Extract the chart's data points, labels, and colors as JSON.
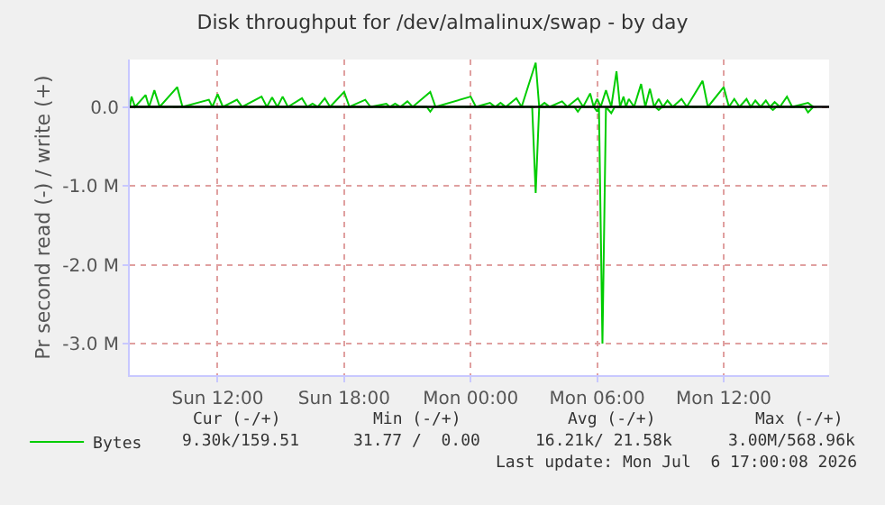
{
  "chart_data": {
    "type": "line",
    "title": "Disk throughput for /dev/almalinux/swap - by day",
    "ylabel": "Pr second read (-) / write (+)",
    "xlim": [
      "2026-07-05T07:50",
      "2026-07-06T17:00"
    ],
    "xticks": [
      {
        "value": "2026-07-05T12:00",
        "label": "Sun 12:00"
      },
      {
        "value": "2026-07-05T18:00",
        "label": "Sun 18:00"
      },
      {
        "value": "2026-07-06T00:00",
        "label": "Mon 00:00"
      },
      {
        "value": "2026-07-06T06:00",
        "label": "Mon 06:00"
      },
      {
        "value": "2026-07-06T12:00",
        "label": "Mon 12:00"
      }
    ],
    "ylim": [
      -3400000,
      600000
    ],
    "yticks": [
      {
        "value": 0,
        "label": "0.0"
      },
      {
        "value": -1000000,
        "label": "-1.0 M"
      },
      {
        "value": -2000000,
        "label": "-2.0 M"
      },
      {
        "value": -3000000,
        "label": "-3.0 M"
      }
    ],
    "grid": true,
    "legend": "bottom",
    "marker": "none",
    "line_style": "solid",
    "ref_lines": [
      {
        "axis": "y",
        "value": 0,
        "color": "#000000"
      }
    ],
    "series": [
      {
        "name": "Bytes",
        "color": "#00cc00",
        "x": [
          "2026-07-05T07:50",
          "2026-07-05T07:55",
          "2026-07-05T08:05",
          "2026-07-05T08:35",
          "2026-07-05T08:45",
          "2026-07-05T09:00",
          "2026-07-05T09:15",
          "2026-07-05T10:05",
          "2026-07-05T10:20",
          "2026-07-05T11:35",
          "2026-07-05T11:45",
          "2026-07-05T12:00",
          "2026-07-05T12:15",
          "2026-07-05T12:55",
          "2026-07-05T13:10",
          "2026-07-05T14:05",
          "2026-07-05T14:20",
          "2026-07-05T14:35",
          "2026-07-05T14:50",
          "2026-07-05T15:05",
          "2026-07-05T15:20",
          "2026-07-05T16:00",
          "2026-07-05T16:15",
          "2026-07-05T16:30",
          "2026-07-05T16:45",
          "2026-07-05T17:05",
          "2026-07-05T17:20",
          "2026-07-05T18:00",
          "2026-07-05T18:15",
          "2026-07-05T19:00",
          "2026-07-05T19:15",
          "2026-07-05T20:00",
          "2026-07-05T20:10",
          "2026-07-05T20:25",
          "2026-07-05T20:40",
          "2026-07-05T21:00",
          "2026-07-05T21:15",
          "2026-07-05T22:05",
          "2026-07-05T22:20",
          "2026-07-06T00:00",
          "2026-07-06T00:15",
          "2026-07-06T00:55",
          "2026-07-06T01:10",
          "2026-07-06T01:25",
          "2026-07-06T01:40",
          "2026-07-06T02:10",
          "2026-07-06T02:25",
          "2026-07-06T03:05",
          "2026-07-06T03:15",
          "2026-07-06T03:30",
          "2026-07-06T03:45",
          "2026-07-06T04:20",
          "2026-07-06T04:35",
          "2026-07-06T05:05",
          "2026-07-06T05:20",
          "2026-07-06T05:40",
          "2026-07-06T05:50",
          "2026-07-06T06:00",
          "2026-07-06T06:10",
          "2026-07-06T06:25",
          "2026-07-06T06:40",
          "2026-07-06T06:55",
          "2026-07-06T07:05",
          "2026-07-06T07:15",
          "2026-07-06T07:22",
          "2026-07-06T07:30",
          "2026-07-06T07:45",
          "2026-07-06T08:05",
          "2026-07-06T08:17",
          "2026-07-06T08:30",
          "2026-07-06T08:42",
          "2026-07-06T08:55",
          "2026-07-06T09:07",
          "2026-07-06T09:20",
          "2026-07-06T09:35",
          "2026-07-06T10:00",
          "2026-07-06T10:15",
          "2026-07-06T11:00",
          "2026-07-06T11:15",
          "2026-07-06T12:00",
          "2026-07-06T12:15",
          "2026-07-06T12:30",
          "2026-07-06T12:45",
          "2026-07-06T13:05",
          "2026-07-06T13:17",
          "2026-07-06T13:30",
          "2026-07-06T13:45",
          "2026-07-06T14:00",
          "2026-07-06T14:12",
          "2026-07-06T14:25",
          "2026-07-06T14:40",
          "2026-07-06T15:00",
          "2026-07-06T15:15",
          "2026-07-06T16:00",
          "2026-07-06T16:15"
        ],
        "values": [
          0,
          130000,
          0,
          150000,
          0,
          210000,
          0,
          250000,
          0,
          90000,
          0,
          160000,
          0,
          90000,
          0,
          130000,
          0,
          120000,
          0,
          130000,
          0,
          110000,
          0,
          40000,
          0,
          110000,
          0,
          190000,
          0,
          90000,
          0,
          40000,
          0,
          40000,
          0,
          70000,
          0,
          190000,
          0,
          130000,
          0,
          50000,
          0,
          50000,
          0,
          110000,
          0,
          560000,
          0,
          50000,
          0,
          70000,
          0,
          110000,
          0,
          170000,
          0,
          100000,
          0,
          210000,
          0,
          450000,
          0,
          130000,
          0,
          100000,
          0,
          290000,
          0,
          230000,
          0,
          100000,
          0,
          80000,
          0,
          100000,
          0,
          330000,
          0,
          250000,
          0,
          100000,
          0,
          100000,
          0,
          80000,
          0,
          80000,
          0,
          60000,
          0,
          130000,
          0,
          50000,
          0
        ]
      },
      {
        "color": "#00cc00",
        "x": [
          "2026-07-05T07:50",
          "2026-07-05T21:55",
          "2026-07-05T22:05",
          "2026-07-05T22:15",
          "2026-07-06T02:55",
          "2026-07-06T03:05",
          "2026-07-06T03:15",
          "2026-07-06T04:55",
          "2026-07-06T05:05",
          "2026-07-06T05:15",
          "2026-07-06T05:50",
          "2026-07-06T06:00",
          "2026-07-06T06:05",
          "2026-07-06T06:15",
          "2026-07-06T06:25",
          "2026-07-06T06:40",
          "2026-07-06T06:50",
          "2026-07-06T08:45",
          "2026-07-06T08:55",
          "2026-07-06T09:05",
          "2026-07-06T14:10",
          "2026-07-06T14:20",
          "2026-07-06T14:30",
          "2026-07-06T15:50",
          "2026-07-06T16:00",
          "2026-07-06T16:15"
        ],
        "values": [
          0,
          0,
          -60000,
          0,
          0,
          -1090000,
          0,
          0,
          -60000,
          0,
          0,
          -60000,
          0,
          -3000000,
          0,
          -80000,
          0,
          0,
          -40000,
          0,
          0,
          -40000,
          0,
          0,
          -70000,
          0
        ]
      }
    ],
    "annotations": [
      "Cur (-/+)",
      "Min (-/+)",
      "Avg (-/+)",
      "Max (-/+)",
      "9.30k/159.51",
      "31.77 /  0.00",
      "16.21k/ 21.58k",
      "3.00M/568.96k",
      "Last update: Mon Jul  6 17:00:08 2026"
    ]
  }
}
